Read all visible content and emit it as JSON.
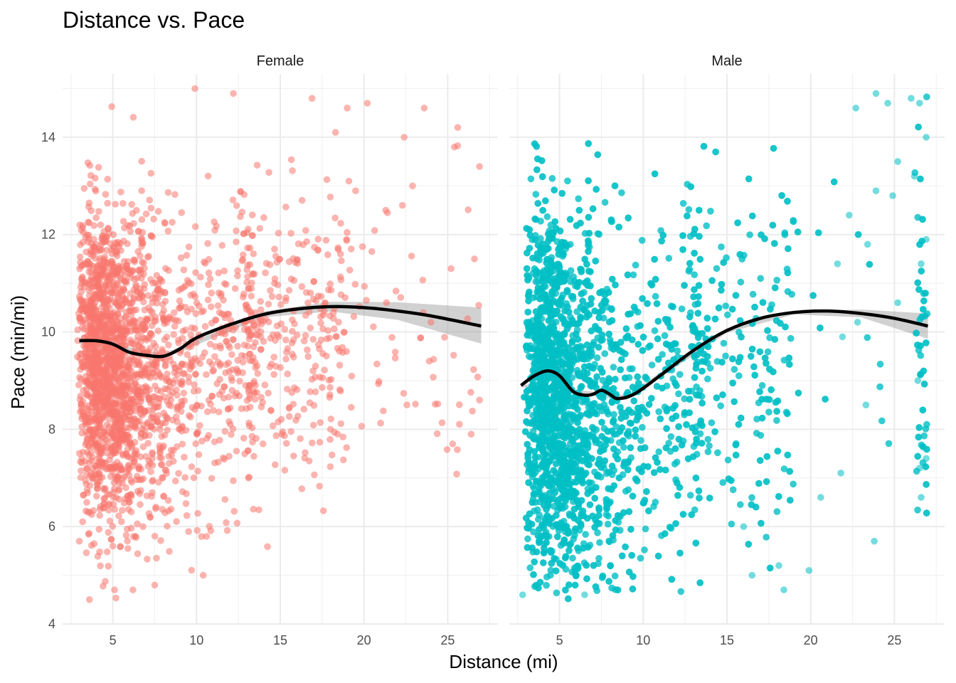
{
  "chart_data": {
    "type": "scatter",
    "title": "Distance vs. Pace",
    "xlabel": "Distance (mi)",
    "ylabel": "Pace (min/mi)",
    "xlim": [
      2,
      28
    ],
    "ylim": [
      4,
      15.3
    ],
    "x_ticks": [
      5,
      10,
      15,
      20,
      25
    ],
    "y_ticks": [
      4,
      6,
      8,
      10,
      12,
      14
    ],
    "grid": true,
    "legend": "none",
    "facets": [
      {
        "name": "Female",
        "color": "#F8766D",
        "point_count": 2600,
        "points_sample": [
          [
            3.6,
            4.5
          ],
          [
            5.1,
            4.7
          ],
          [
            6.2,
            4.7
          ],
          [
            7.5,
            4.8
          ],
          [
            10.4,
            5.0
          ],
          [
            5.0,
            5.6
          ],
          [
            10.6,
            5.8
          ],
          [
            3.0,
            5.7
          ],
          [
            6.8,
            6.0
          ],
          [
            3.2,
            6.1
          ],
          [
            13.1,
            7.0
          ],
          [
            18.0,
            8.0
          ],
          [
            23.9,
            9.4
          ],
          [
            25.3,
            7.7
          ],
          [
            26.4,
            7.9
          ],
          [
            26.9,
            8.6
          ],
          [
            20.2,
            14.7
          ],
          [
            25.6,
            14.2
          ],
          [
            26.9,
            13.4
          ],
          [
            22.4,
            14.0
          ],
          [
            23.6,
            14.6
          ],
          [
            21.3,
            12.5
          ],
          [
            25.4,
            13.8
          ],
          [
            19.1,
            13.1
          ],
          [
            19.5,
            12.9
          ],
          [
            22.3,
            12.6
          ],
          [
            22.9,
            13.0
          ],
          [
            26.6,
            11.5
          ],
          [
            24.0,
            10.2
          ],
          [
            25.2,
            11.3
          ],
          [
            18.6,
            11.6
          ],
          [
            19.0,
            14.6
          ],
          [
            18.3,
            14.1
          ],
          [
            16.9,
            14.8
          ],
          [
            12.2,
            14.9
          ],
          [
            9.9,
            15.0
          ]
        ],
        "smooth_x": [
          3,
          4,
          5,
          6,
          7,
          8,
          9,
          10,
          12,
          14,
          16,
          18,
          20,
          22,
          24,
          27
        ],
        "smooth_y": [
          9.82,
          9.82,
          9.75,
          9.58,
          9.52,
          9.5,
          9.65,
          9.88,
          10.15,
          10.36,
          10.47,
          10.52,
          10.5,
          10.43,
          10.33,
          10.12
        ],
        "ci_band": [
          [
            3,
            9.76,
            9.88
          ],
          [
            8,
            9.45,
            9.55
          ],
          [
            14,
            10.3,
            10.42
          ],
          [
            18,
            10.42,
            10.62
          ],
          [
            22,
            10.25,
            10.61
          ],
          [
            27,
            9.76,
            10.5
          ]
        ]
      },
      {
        "name": "Male",
        "color": "#00BFC4",
        "point_count": 5200,
        "points_sample": [
          [
            2.8,
            4.6
          ],
          [
            3.6,
            4.8
          ],
          [
            6.5,
            4.6
          ],
          [
            16.5,
            5.0
          ],
          [
            18.4,
            4.7
          ],
          [
            19.9,
            5.1
          ],
          [
            23.8,
            5.7
          ],
          [
            18.1,
            5.2
          ],
          [
            16.0,
            6.0
          ],
          [
            20.6,
            6.6
          ],
          [
            21.8,
            7.1
          ],
          [
            23.3,
            8.5
          ],
          [
            23.9,
            14.9
          ],
          [
            22.7,
            14.6
          ],
          [
            24.6,
            14.7
          ],
          [
            26.0,
            14.8
          ],
          [
            26.5,
            14.7
          ],
          [
            26.9,
            14.0
          ],
          [
            25.2,
            13.5
          ],
          [
            24.9,
            12.8
          ],
          [
            26.2,
            13.2
          ],
          [
            26.6,
            11.4
          ],
          [
            26.9,
            11.9
          ],
          [
            23.4,
            11.8
          ],
          [
            21.6,
            11.4
          ],
          [
            22.3,
            12.4
          ],
          [
            23.9,
            12.9
          ],
          [
            21.9,
            9.9
          ],
          [
            22.8,
            10.2
          ],
          [
            25.2,
            10.6
          ],
          [
            26.6,
            6.6
          ],
          [
            26.5,
            7.2
          ],
          [
            26.9,
            7.4
          ],
          [
            26.4,
            9.0
          ]
        ],
        "smooth_x": [
          2.7,
          3.5,
          4.3,
          5.0,
          5.8,
          6.5,
          7.0,
          7.5,
          8.0,
          8.5,
          9.5,
          11,
          13,
          15,
          17,
          19,
          21,
          23,
          25,
          27
        ],
        "smooth_y": [
          8.9,
          9.1,
          9.2,
          9.1,
          8.78,
          8.7,
          8.72,
          8.8,
          8.72,
          8.63,
          8.73,
          9.1,
          9.62,
          10.03,
          10.28,
          10.4,
          10.43,
          10.38,
          10.28,
          10.12
        ],
        "ci_band": [
          [
            2.7,
            8.87,
            8.93
          ],
          [
            9,
            8.6,
            8.7
          ],
          [
            15,
            9.98,
            10.08
          ],
          [
            19,
            10.36,
            10.44
          ],
          [
            23,
            10.3,
            10.46
          ],
          [
            27,
            9.86,
            10.38
          ]
        ]
      }
    ]
  }
}
